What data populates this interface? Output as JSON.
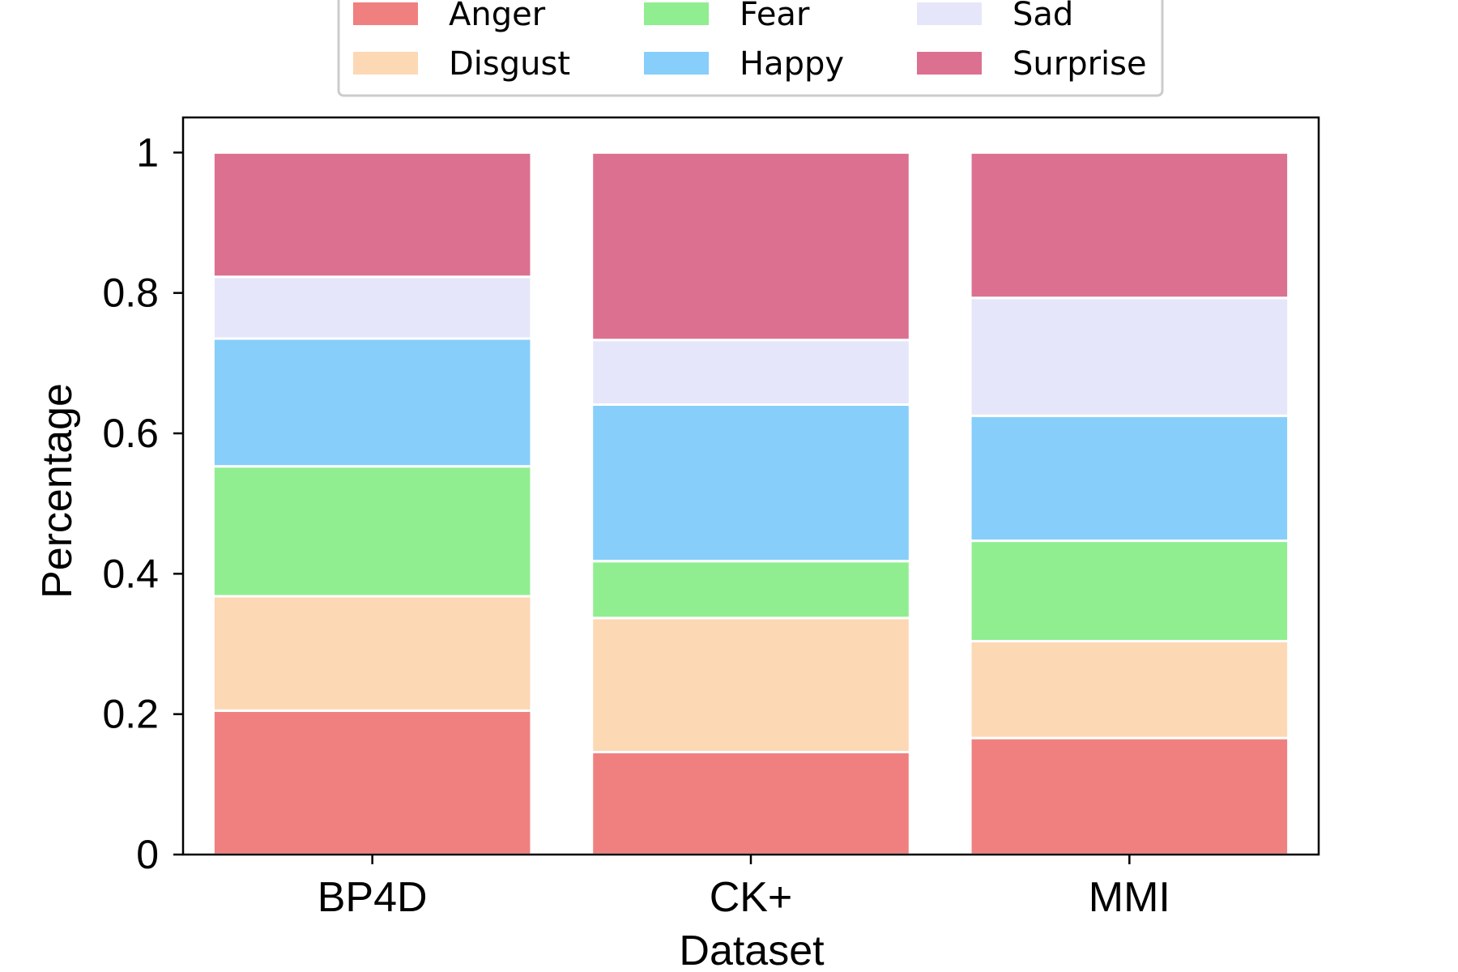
{
  "chart_data": {
    "type": "bar",
    "stacked": true,
    "categories": [
      "BP4D",
      "CK+",
      "MMI"
    ],
    "xlabel": "Dataset",
    "ylabel": "Percentage",
    "ylim": [
      0,
      1.05
    ],
    "yticks": [
      0,
      0.2,
      0.4,
      0.6,
      0.8,
      1
    ],
    "ytick_labels": [
      "0",
      "0.2",
      "0.4",
      "0.6",
      "0.8",
      "1"
    ],
    "grid": false,
    "legend": {
      "placement": "top-center",
      "columns": 3,
      "entries": [
        "Anger",
        "Disgust",
        "Fear",
        "Happy",
        "Sad",
        "Surprise"
      ]
    },
    "series": [
      {
        "name": "Anger",
        "color": "#F08080",
        "values": [
          0.205,
          0.146,
          0.166
        ]
      },
      {
        "name": "Disgust",
        "color": "#FDD8B5",
        "values": [
          0.163,
          0.191,
          0.138
        ]
      },
      {
        "name": "Fear",
        "color": "#90EE90",
        "values": [
          0.185,
          0.081,
          0.143
        ]
      },
      {
        "name": "Happy",
        "color": "#87CEFA",
        "values": [
          0.182,
          0.223,
          0.178
        ]
      },
      {
        "name": "Sad",
        "color": "#E6E6FA",
        "values": [
          0.088,
          0.092,
          0.168
        ]
      },
      {
        "name": "Surprise",
        "color": "#DC7090",
        "values": [
          0.177,
          0.267,
          0.207
        ]
      }
    ]
  }
}
